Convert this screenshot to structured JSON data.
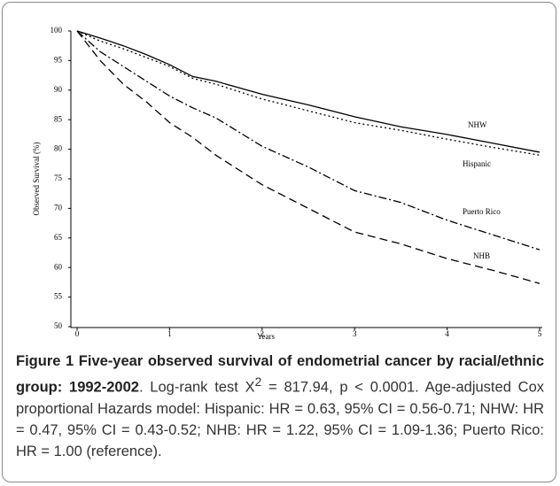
{
  "chart_data": {
    "type": "line",
    "x_label": "Years",
    "y_label": "Observed Survival (%)",
    "xlim": [
      0,
      5
    ],
    "xticks": [
      0,
      1,
      2,
      3,
      4,
      5
    ],
    "ylim": [
      50,
      100
    ],
    "yticks": [
      100,
      95,
      90,
      85,
      80,
      75,
      70,
      65,
      60,
      55,
      50
    ],
    "x": [
      0,
      0.25,
      0.5,
      0.75,
      1,
      1.25,
      1.5,
      2,
      2.5,
      3,
      3.5,
      4,
      4.5,
      5
    ],
    "series": [
      {
        "name": "NHW",
        "color": "#000000",
        "style": "solid",
        "values": [
          100,
          98.8,
          97.5,
          96,
          94.3,
          92.3,
          91.5,
          89.3,
          87.5,
          85.5,
          83.8,
          82.5,
          81,
          79.5
        ]
      },
      {
        "name": "Hispanic",
        "color": "#000000",
        "style": "dotted",
        "values": [
          100,
          98.3,
          97,
          95.5,
          94,
          92,
          91,
          88.5,
          86.5,
          84.5,
          83.2,
          81.7,
          80.3,
          79
        ]
      },
      {
        "name": "Puerto Rico",
        "color": "#000000",
        "style": "dashdot",
        "values": [
          100,
          96.5,
          94,
          91.5,
          89,
          87,
          85.3,
          80.5,
          77,
          73,
          71,
          68,
          65.5,
          63
        ]
      },
      {
        "name": "NHB",
        "color": "#000000",
        "style": "dashed",
        "values": [
          100,
          95,
          91,
          88,
          84.5,
          82,
          79,
          74,
          70,
          66,
          64,
          61.5,
          59.5,
          57.3
        ]
      }
    ]
  },
  "caption": {
    "label": "Figure 1",
    "title": "Five-year observed survival of endometrial cancer by racial/ethnic group: 1992-2002",
    "text_before_sup": ". Log-rank test X",
    "sup": "2",
    "text_after_sup": " = 817.94, p < 0.0001. Age-adjusted Cox proportional Hazards model: Hispanic: HR = 0.63, 95% CI = 0.56-0.71; NHW: HR = 0.47, 95% CI = 0.43-0.52; NHB: HR = 1.22, 95% CI = 1.09-1.36; Puerto Rico: HR = 1.00 (reference)."
  }
}
